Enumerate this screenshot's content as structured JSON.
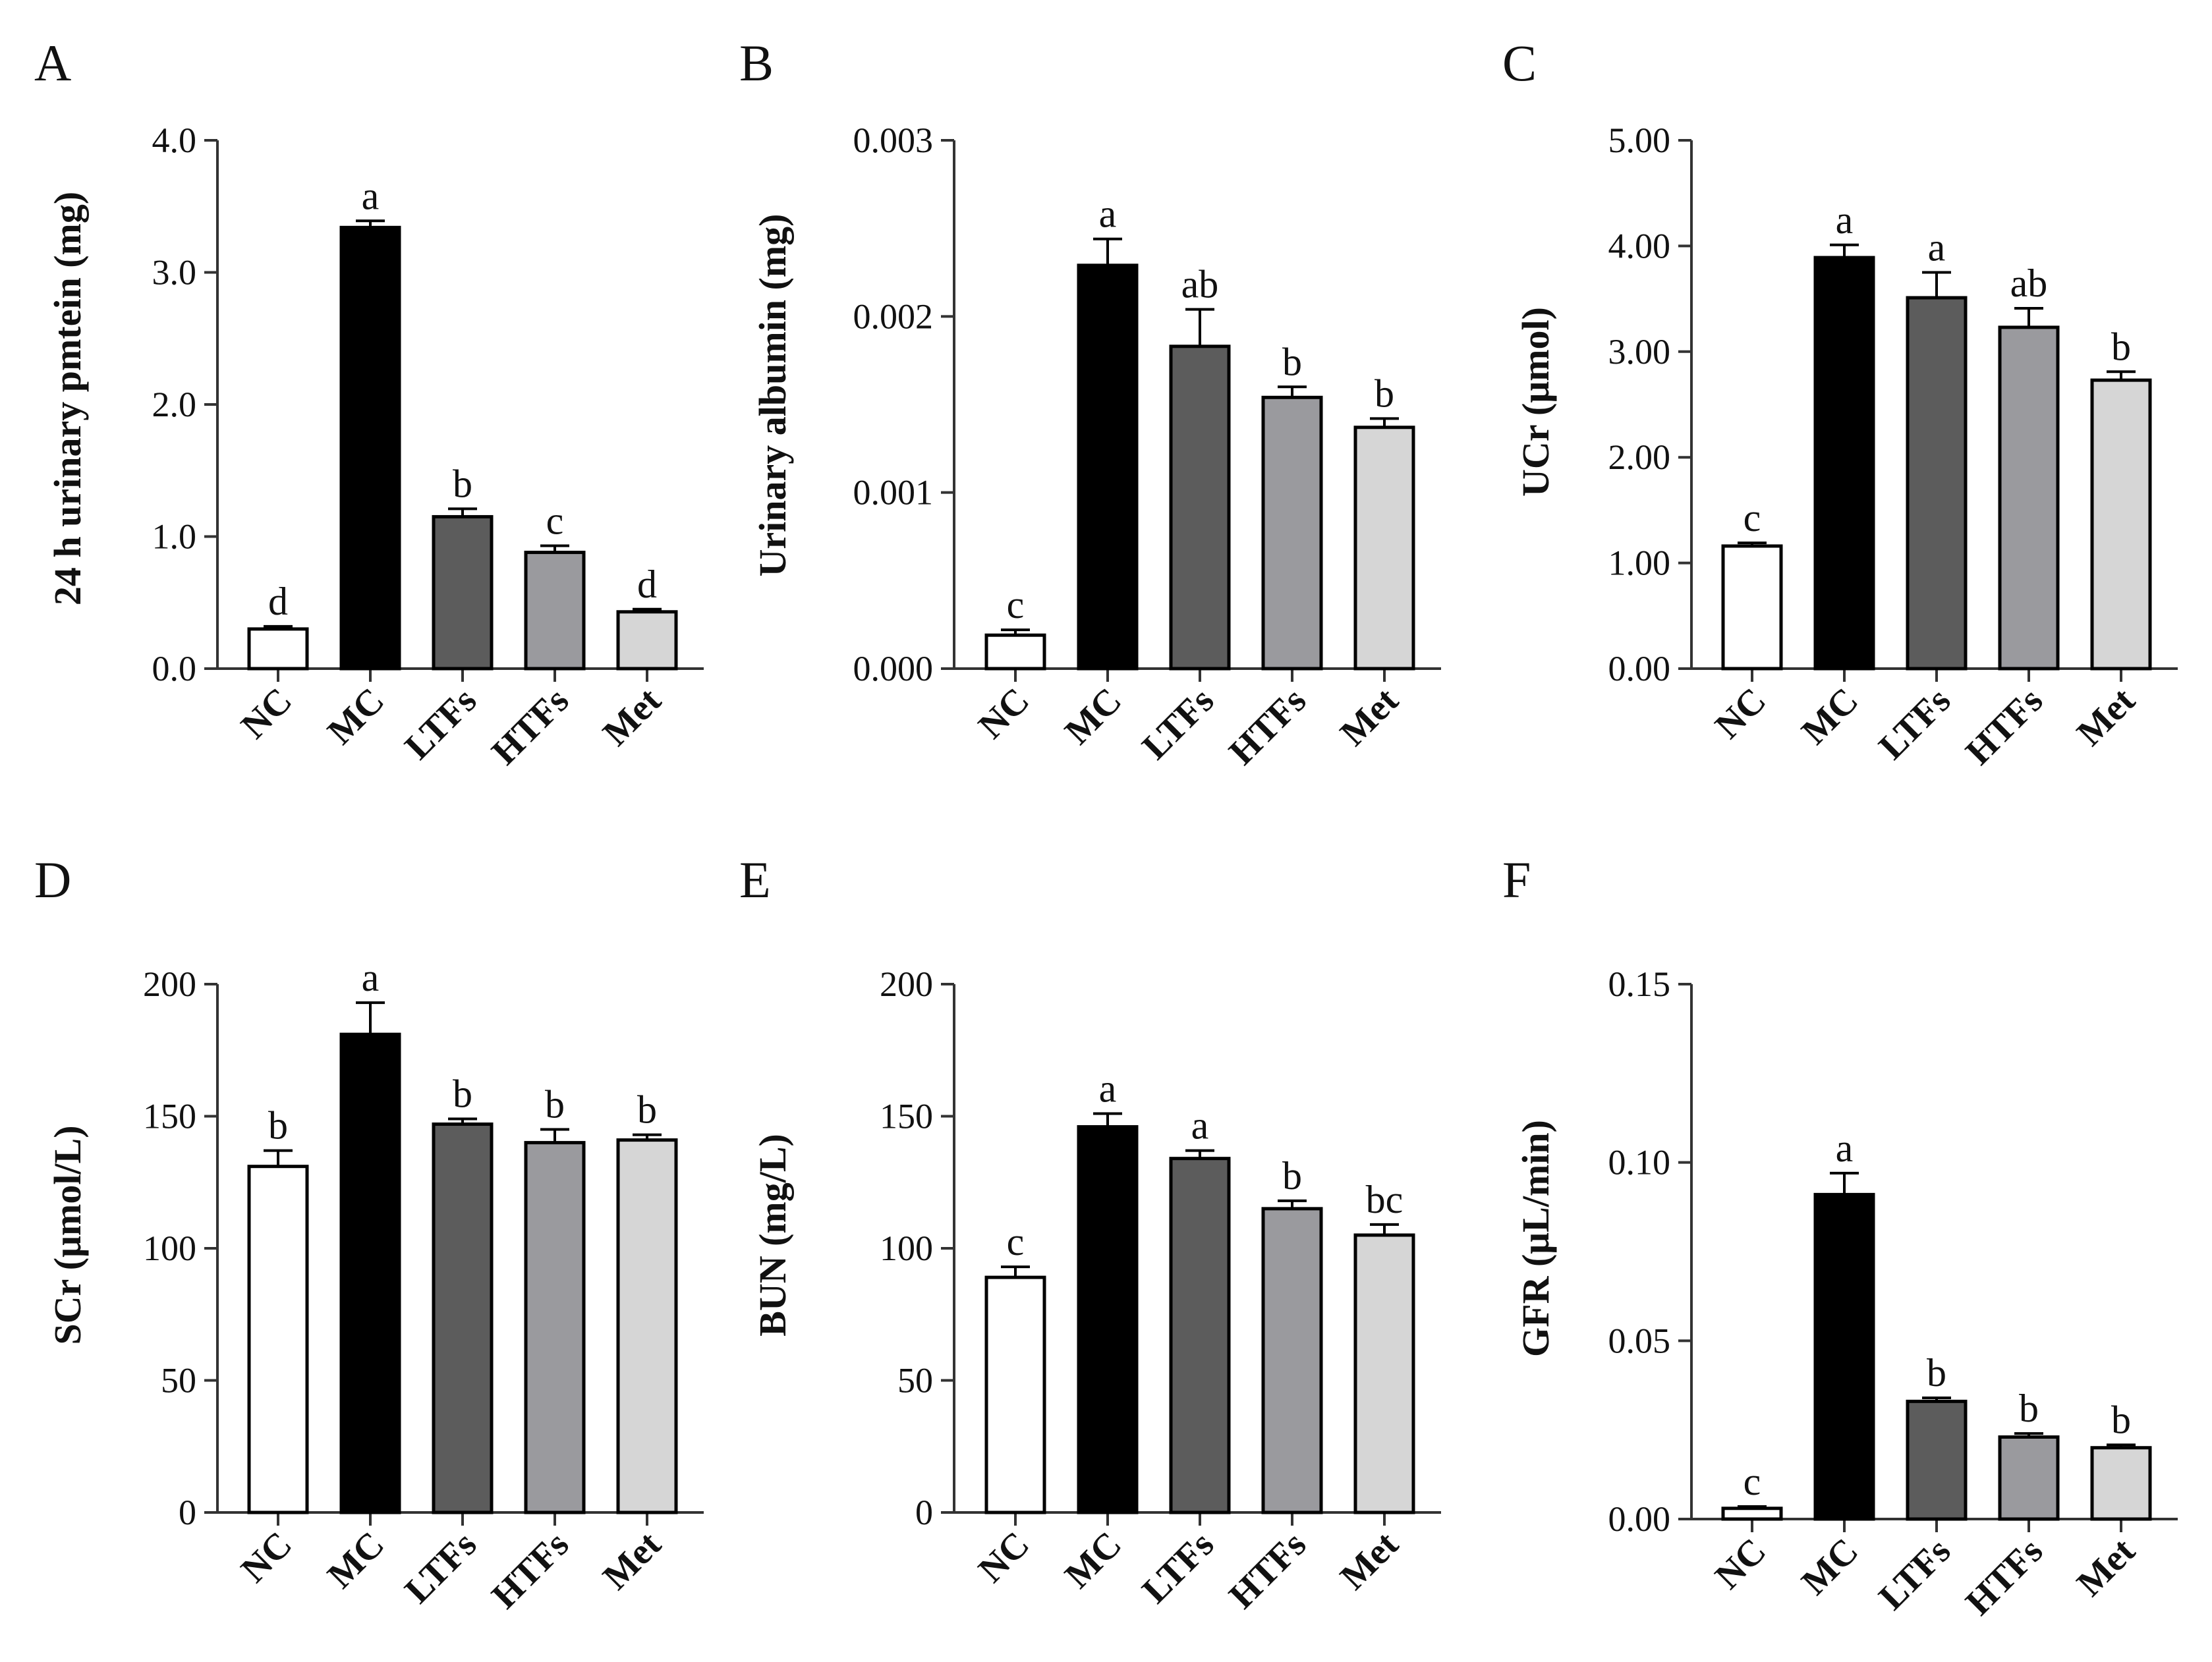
{
  "chart_data": [
    {
      "panel": "A",
      "type": "bar",
      "ylabel": "24 h urinary pmtein (mg)",
      "categories": [
        "NC",
        "MC",
        "LTFs",
        "HTFs",
        "Met"
      ],
      "values": [
        0.3,
        3.34,
        1.15,
        0.88,
        0.43
      ],
      "errors": [
        0.02,
        0.05,
        0.06,
        0.05,
        0.02
      ],
      "significance": [
        "d",
        "a",
        "b",
        "c",
        "d"
      ],
      "ylim": [
        0,
        4
      ],
      "ticks": [
        0,
        1,
        2,
        3,
        4
      ],
      "tick_labels": [
        "0.0",
        "1.0",
        "2.0",
        "3.0",
        "4.0"
      ],
      "bar_colors": [
        "#ffffff",
        "#000000",
        "#5c5c5c",
        "#9a9a9e",
        "#d6d6d6"
      ]
    },
    {
      "panel": "B",
      "type": "bar",
      "ylabel": "Urinary albumin (mg)",
      "categories": [
        "NC",
        "MC",
        "LTFs",
        "HTFs",
        "Met"
      ],
      "values": [
        0.00019,
        0.00229,
        0.00183,
        0.00154,
        0.00137
      ],
      "errors": [
        3e-05,
        0.00015,
        0.00021,
        6e-05,
        5e-05
      ],
      "significance": [
        "c",
        "a",
        "ab",
        "b",
        "b"
      ],
      "ylim": [
        0,
        0.003
      ],
      "ticks": [
        0,
        0.001,
        0.002,
        0.003
      ],
      "tick_labels": [
        "0.000",
        "0.001",
        "0.002",
        "0.003"
      ],
      "bar_colors": [
        "#ffffff",
        "#000000",
        "#5c5c5c",
        "#9a9a9e",
        "#d6d6d6"
      ]
    },
    {
      "panel": "C",
      "type": "bar",
      "ylabel": "UCr (μmol)",
      "categories": [
        "NC",
        "MC",
        "LTFs",
        "HTFs",
        "Met"
      ],
      "values": [
        1.16,
        3.89,
        3.51,
        3.23,
        2.73
      ],
      "errors": [
        0.03,
        0.12,
        0.24,
        0.18,
        0.08
      ],
      "significance": [
        "c",
        "a",
        "a",
        "ab",
        "b"
      ],
      "ylim": [
        0,
        5
      ],
      "ticks": [
        0,
        1,
        2,
        3,
        4,
        5
      ],
      "tick_labels": [
        "0.00",
        "1.00",
        "2.00",
        "3.00",
        "4.00",
        "5.00"
      ],
      "bar_colors": [
        "#ffffff",
        "#000000",
        "#5c5c5c",
        "#9a9a9e",
        "#d6d6d6"
      ]
    },
    {
      "panel": "D",
      "type": "bar",
      "ylabel": "SCr (μmol/L)",
      "categories": [
        "NC",
        "MC",
        "LTFs",
        "HTFs",
        "Met"
      ],
      "values": [
        131,
        181,
        147,
        140,
        141
      ],
      "errors": [
        6,
        12,
        2,
        5,
        2
      ],
      "significance": [
        "b",
        "a",
        "b",
        "b",
        "b"
      ],
      "ylim": [
        0,
        200
      ],
      "ticks": [
        0,
        50,
        100,
        150,
        200
      ],
      "tick_labels": [
        "0",
        "50",
        "100",
        "150",
        "200"
      ],
      "bar_colors": [
        "#ffffff",
        "#000000",
        "#5c5c5c",
        "#9a9a9e",
        "#d6d6d6"
      ]
    },
    {
      "panel": "E",
      "type": "bar",
      "ylabel": "BUN (mg/L)",
      "categories": [
        "NC",
        "MC",
        "LTFs",
        "HTFs",
        "Met"
      ],
      "values": [
        89,
        146,
        134,
        115,
        105
      ],
      "errors": [
        4,
        5,
        3,
        3,
        4
      ],
      "significance": [
        "c",
        "a",
        "a",
        "b",
        "bc"
      ],
      "ylim": [
        0,
        200
      ],
      "ticks": [
        0,
        50,
        100,
        150,
        200
      ],
      "tick_labels": [
        "0",
        "50",
        "100",
        "150",
        "200"
      ],
      "bar_colors": [
        "#ffffff",
        "#000000",
        "#5c5c5c",
        "#9a9a9e",
        "#d6d6d6"
      ]
    },
    {
      "panel": "F",
      "type": "bar",
      "ylabel": "GFR (μL/min)",
      "categories": [
        "NC",
        "MC",
        "LTFs",
        "HTFs",
        "Met"
      ],
      "values": [
        0.003,
        0.091,
        0.033,
        0.023,
        0.02
      ],
      "errors": [
        0.0005,
        0.006,
        0.001,
        0.001,
        0.0008
      ],
      "significance": [
        "c",
        "a",
        "b",
        "b",
        "b"
      ],
      "ylim": [
        0,
        0.15
      ],
      "ticks": [
        0,
        0.05,
        0.1,
        0.15
      ],
      "tick_labels": [
        "0.00",
        "0.05",
        "0.10",
        "0.15"
      ],
      "bar_colors": [
        "#ffffff",
        "#000000",
        "#5c5c5c",
        "#9a9a9e",
        "#d6d6d6"
      ]
    }
  ]
}
